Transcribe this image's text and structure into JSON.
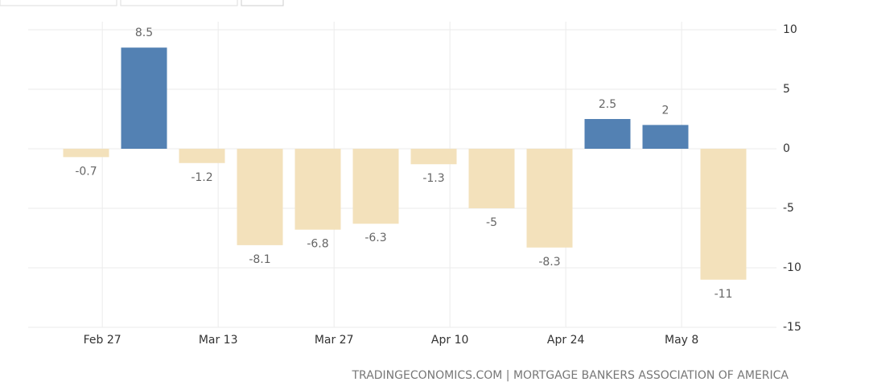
{
  "chart_data": {
    "type": "bar",
    "source": "TRADINGECONOMICS.COM | MORTGAGE BANKERS ASSOCIATION OF AMERICA",
    "categories": [
      "Feb 27",
      null,
      "Mar 13",
      null,
      "Mar 27",
      null,
      "Apr 10",
      null,
      "Apr 24",
      null,
      "May 8",
      null
    ],
    "values": [
      -0.7,
      8.5,
      -1.2,
      -8.1,
      -6.8,
      -6.3,
      -1.3,
      -5,
      -8.3,
      2.5,
      2,
      -11
    ],
    "positive_color": "#5381b3",
    "negative_color": "#f3e1bb",
    "ylim": [
      -15,
      10
    ],
    "yticks": [
      10,
      5,
      0,
      -5,
      -10,
      -15
    ],
    "grid": true
  }
}
